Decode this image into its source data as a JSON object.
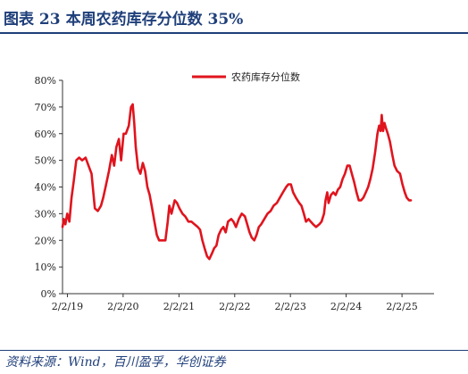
{
  "figure": {
    "label": "图表 23",
    "title": "本周农药库存分位数 35%",
    "source": "资料来源：Wind，百川盈孚，华创证券"
  },
  "chart_data": {
    "type": "line",
    "title": "",
    "xlabel": "",
    "ylabel": "",
    "y_tick_labels": [
      "0%",
      "10%",
      "20%",
      "30%",
      "40%",
      "50%",
      "60%",
      "70%",
      "80%"
    ],
    "x_tick_labels": [
      "2/2/19",
      "2/2/20",
      "2/2/21",
      "2/2/22",
      "2/2/23",
      "2/2/24",
      "2/2/25"
    ],
    "ylim": [
      0,
      80
    ],
    "xlim": [
      "2019-01-01",
      "2025-08-31"
    ],
    "grid": false,
    "legend_position": "top-center",
    "series": [
      {
        "name": "农药库存分位数",
        "color": "#e0141e",
        "points": [
          [
            "2019-01-01",
            25
          ],
          [
            "2019-01-10",
            28
          ],
          [
            "2019-01-20",
            26
          ],
          [
            "2019-02-01",
            30
          ],
          [
            "2019-02-15",
            27
          ],
          [
            "2019-03-01",
            36
          ],
          [
            "2019-03-15",
            42
          ],
          [
            "2019-04-01",
            50
          ],
          [
            "2019-04-20",
            51
          ],
          [
            "2019-05-10",
            50
          ],
          [
            "2019-06-01",
            51
          ],
          [
            "2019-06-20",
            48
          ],
          [
            "2019-07-10",
            45
          ],
          [
            "2019-08-01",
            32
          ],
          [
            "2019-08-20",
            31
          ],
          [
            "2019-09-10",
            33
          ],
          [
            "2019-09-25",
            36
          ],
          [
            "2019-10-10",
            40
          ],
          [
            "2019-11-01",
            46
          ],
          [
            "2019-11-20",
            52
          ],
          [
            "2019-12-05",
            48
          ],
          [
            "2019-12-20",
            55
          ],
          [
            "2020-01-05",
            58
          ],
          [
            "2020-01-20",
            50
          ],
          [
            "2020-02-05",
            60
          ],
          [
            "2020-02-20",
            60
          ],
          [
            "2020-03-10",
            63
          ],
          [
            "2020-03-25",
            70
          ],
          [
            "2020-04-05",
            71
          ],
          [
            "2020-04-15",
            64
          ],
          [
            "2020-04-25",
            55
          ],
          [
            "2020-05-10",
            47
          ],
          [
            "2020-05-25",
            45
          ],
          [
            "2020-06-10",
            49
          ],
          [
            "2020-06-25",
            46
          ],
          [
            "2020-07-10",
            40
          ],
          [
            "2020-07-25",
            37
          ],
          [
            "2020-08-10",
            32
          ],
          [
            "2020-08-25",
            27
          ],
          [
            "2020-09-10",
            22
          ],
          [
            "2020-09-25",
            20
          ],
          [
            "2020-10-15",
            20
          ],
          [
            "2020-11-05",
            20
          ],
          [
            "2020-11-20",
            27
          ],
          [
            "2020-12-01",
            33
          ],
          [
            "2020-12-15",
            30
          ],
          [
            "2021-01-05",
            35
          ],
          [
            "2021-01-20",
            34
          ],
          [
            "2021-02-05",
            32
          ],
          [
            "2021-02-25",
            30
          ],
          [
            "2021-03-15",
            29
          ],
          [
            "2021-04-05",
            27
          ],
          [
            "2021-04-25",
            27
          ],
          [
            "2021-05-15",
            26
          ],
          [
            "2021-06-05",
            25
          ],
          [
            "2021-06-20",
            24
          ],
          [
            "2021-07-05",
            20
          ],
          [
            "2021-07-20",
            17
          ],
          [
            "2021-08-05",
            14
          ],
          [
            "2021-08-20",
            13
          ],
          [
            "2021-09-05",
            15
          ],
          [
            "2021-09-20",
            17
          ],
          [
            "2021-10-05",
            18
          ],
          [
            "2021-10-20",
            22
          ],
          [
            "2021-11-05",
            24
          ],
          [
            "2021-11-20",
            25
          ],
          [
            "2021-12-05",
            23
          ],
          [
            "2021-12-20",
            27
          ],
          [
            "2022-01-10",
            28
          ],
          [
            "2022-01-25",
            27
          ],
          [
            "2022-02-10",
            25
          ],
          [
            "2022-03-01",
            28
          ],
          [
            "2022-03-20",
            30
          ],
          [
            "2022-04-10",
            29
          ],
          [
            "2022-04-25",
            26
          ],
          [
            "2022-05-10",
            23
          ],
          [
            "2022-05-25",
            21
          ],
          [
            "2022-06-10",
            20
          ],
          [
            "2022-06-25",
            22
          ],
          [
            "2022-07-10",
            25
          ],
          [
            "2022-07-25",
            26
          ],
          [
            "2022-08-15",
            28
          ],
          [
            "2022-09-05",
            30
          ],
          [
            "2022-09-25",
            31
          ],
          [
            "2022-10-15",
            33
          ],
          [
            "2022-11-05",
            34
          ],
          [
            "2022-11-25",
            36
          ],
          [
            "2022-12-15",
            38
          ],
          [
            "2023-01-05",
            40
          ],
          [
            "2023-01-20",
            41
          ],
          [
            "2023-02-05",
            41
          ],
          [
            "2023-02-20",
            38
          ],
          [
            "2023-03-10",
            36
          ],
          [
            "2023-04-01",
            34
          ],
          [
            "2023-04-15",
            33
          ],
          [
            "2023-05-01",
            30
          ],
          [
            "2023-05-15",
            27
          ],
          [
            "2023-06-01",
            28
          ],
          [
            "2023-06-15",
            27
          ],
          [
            "2023-07-01",
            26
          ],
          [
            "2023-07-20",
            25
          ],
          [
            "2023-08-10",
            26
          ],
          [
            "2023-08-25",
            27
          ],
          [
            "2023-09-10",
            30
          ],
          [
            "2023-09-20",
            35
          ],
          [
            "2023-10-01",
            38
          ],
          [
            "2023-10-10",
            34
          ],
          [
            "2023-10-25",
            37
          ],
          [
            "2023-11-10",
            38
          ],
          [
            "2023-11-25",
            37
          ],
          [
            "2023-12-10",
            39
          ],
          [
            "2023-12-25",
            40
          ],
          [
            "2024-01-10",
            43
          ],
          [
            "2024-01-25",
            45
          ],
          [
            "2024-02-10",
            48
          ],
          [
            "2024-02-25",
            48
          ],
          [
            "2024-03-10",
            45
          ],
          [
            "2024-03-25",
            42
          ],
          [
            "2024-04-10",
            38
          ],
          [
            "2024-04-25",
            35
          ],
          [
            "2024-05-10",
            35
          ],
          [
            "2024-05-25",
            36
          ],
          [
            "2024-06-10",
            38
          ],
          [
            "2024-06-25",
            40
          ],
          [
            "2024-07-10",
            43
          ],
          [
            "2024-07-25",
            47
          ],
          [
            "2024-08-10",
            53
          ],
          [
            "2024-08-25",
            60
          ],
          [
            "2024-09-05",
            63
          ],
          [
            "2024-09-15",
            61
          ],
          [
            "2024-09-22",
            67
          ],
          [
            "2024-10-01",
            61
          ],
          [
            "2024-10-10",
            64
          ],
          [
            "2024-10-20",
            62
          ],
          [
            "2024-11-01",
            60
          ],
          [
            "2024-11-15",
            57
          ],
          [
            "2024-12-01",
            52
          ],
          [
            "2024-12-15",
            48
          ],
          [
            "2025-01-01",
            46
          ],
          [
            "2025-01-20",
            45
          ],
          [
            "2025-02-05",
            41
          ],
          [
            "2025-02-20",
            38
          ],
          [
            "2025-03-05",
            36
          ],
          [
            "2025-03-20",
            35
          ],
          [
            "2025-04-01",
            35
          ]
        ]
      }
    ]
  }
}
